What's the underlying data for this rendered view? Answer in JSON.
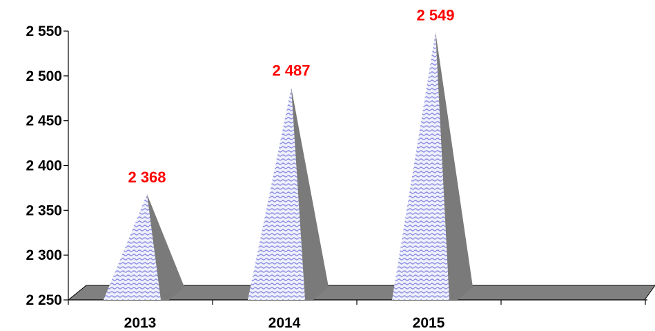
{
  "chart_data": {
    "type": "bar",
    "categories": [
      "2013",
      "2014",
      "2015"
    ],
    "values": [
      2368,
      2487,
      2549
    ],
    "data_labels": [
      "2 368",
      "2 487",
      "2 549"
    ],
    "ylim": [
      2250,
      2550
    ],
    "y_ticks": [
      2250,
      2300,
      2350,
      2400,
      2450,
      2500,
      2550
    ],
    "y_tick_labels": [
      "2 250",
      "2 300",
      "2 350",
      "2 400",
      "2 450",
      "2 500",
      "2 550"
    ],
    "title": "",
    "xlabel": "",
    "ylabel": "",
    "grid": false,
    "legend": "none",
    "colors": {
      "data_label": "#ff0000",
      "floor": "#808080",
      "cone_light": "#e8e8f8",
      "cone_wave": "#8a8ae0",
      "cone_shadow": "#7a7a7a",
      "axis": "#000000"
    }
  }
}
